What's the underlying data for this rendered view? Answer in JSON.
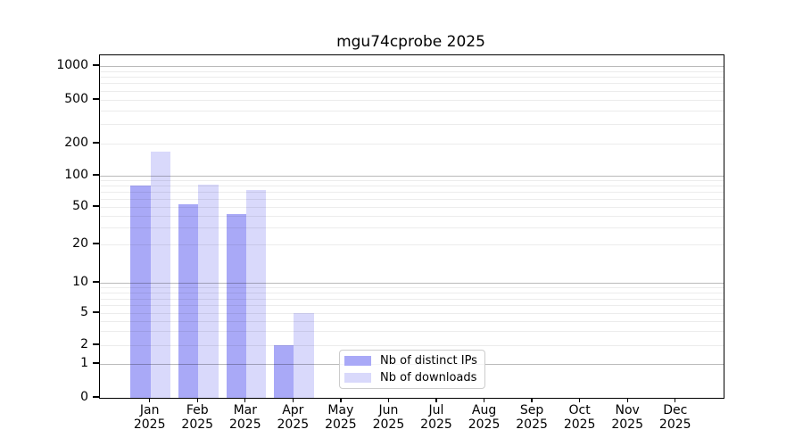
{
  "chart_data": {
    "type": "bar",
    "title": "mgu74cprobe 2025",
    "months": [
      "Jan",
      "Feb",
      "Mar",
      "Apr",
      "May",
      "Jun",
      "Jul",
      "Aug",
      "Sep",
      "Oct",
      "Nov",
      "Dec"
    ],
    "year": "2025",
    "y_ticks": [
      0,
      1,
      2,
      5,
      10,
      20,
      50,
      100,
      200,
      500,
      1000
    ],
    "ylim": [
      0,
      1000
    ],
    "scale": "log-like with linear 0-1 segment",
    "grid": "on, major lines at powers of 10, faint minor log lines, drawn above bars",
    "legend_position": "lower center inside plot",
    "background_color": "#ffffff",
    "series": [
      {
        "name": "Nb of distinct IPs",
        "color": "#a9a9f7",
        "values": [
          80,
          53,
          42,
          2,
          0,
          0,
          0,
          0,
          0,
          0,
          0,
          0
        ]
      },
      {
        "name": "Nb of downloads",
        "color": "#d9d9fb",
        "values": [
          170,
          82,
          73,
          5,
          0,
          0,
          0,
          0,
          0,
          0,
          0,
          0
        ]
      }
    ]
  }
}
